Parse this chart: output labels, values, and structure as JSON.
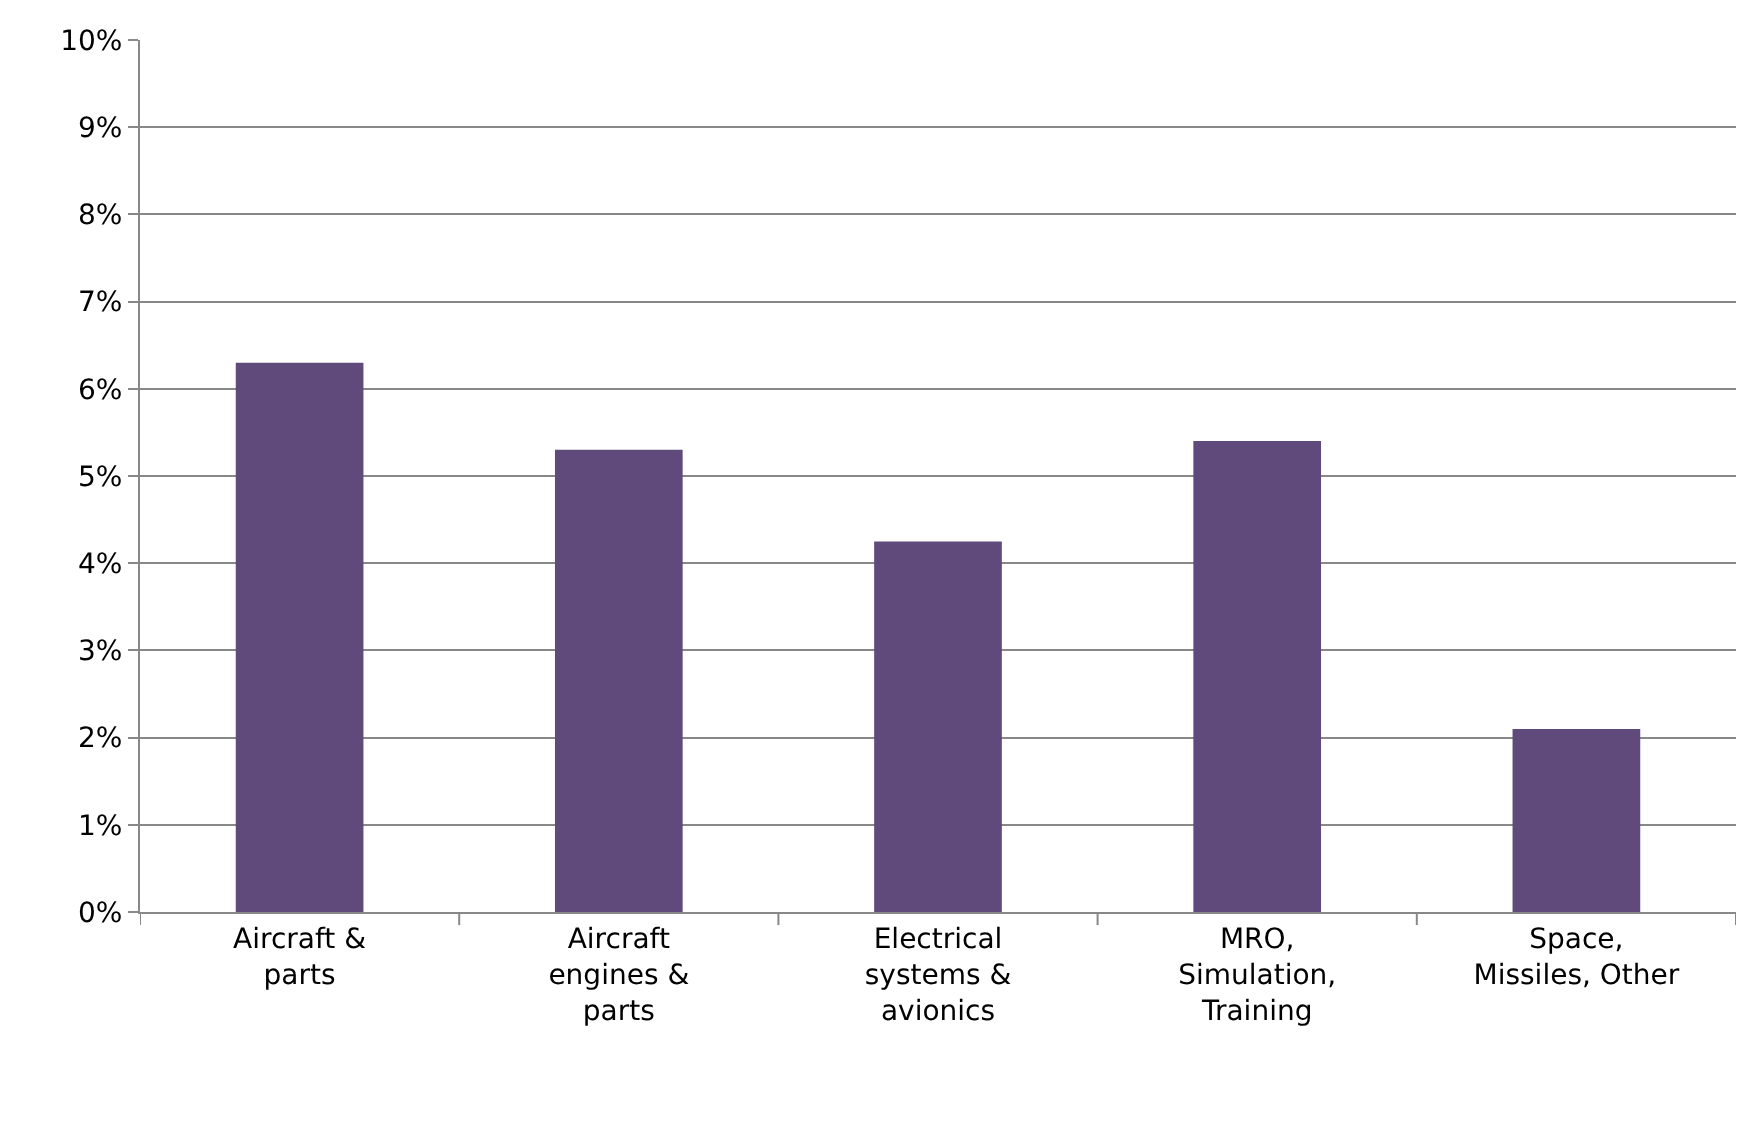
{
  "chart_data": {
    "type": "bar",
    "categories": [
      "Aircraft &\nparts",
      "Aircraft\nengines &\nparts",
      "Electrical\nsystems &\navionics",
      "MRO,\nSimulation,\nTraining",
      "Space,\nMissiles, Other"
    ],
    "values": [
      6.3,
      5.3,
      4.25,
      5.4,
      2.1
    ],
    "color": "#5f4a7b",
    "ylim": [
      0,
      10
    ],
    "yticks": [
      {
        "value": 0,
        "label": "0%"
      },
      {
        "value": 1,
        "label": "1%"
      },
      {
        "value": 2,
        "label": "2%"
      },
      {
        "value": 3,
        "label": "3%"
      },
      {
        "value": 4,
        "label": "4%"
      },
      {
        "value": 5,
        "label": "5%"
      },
      {
        "value": 6,
        "label": "6%"
      },
      {
        "value": 7,
        "label": "7%"
      },
      {
        "value": 8,
        "label": "8%"
      },
      {
        "value": 9,
        "label": "9%"
      },
      {
        "value": 10,
        "label": "10%"
      }
    ],
    "grid": "y"
  }
}
